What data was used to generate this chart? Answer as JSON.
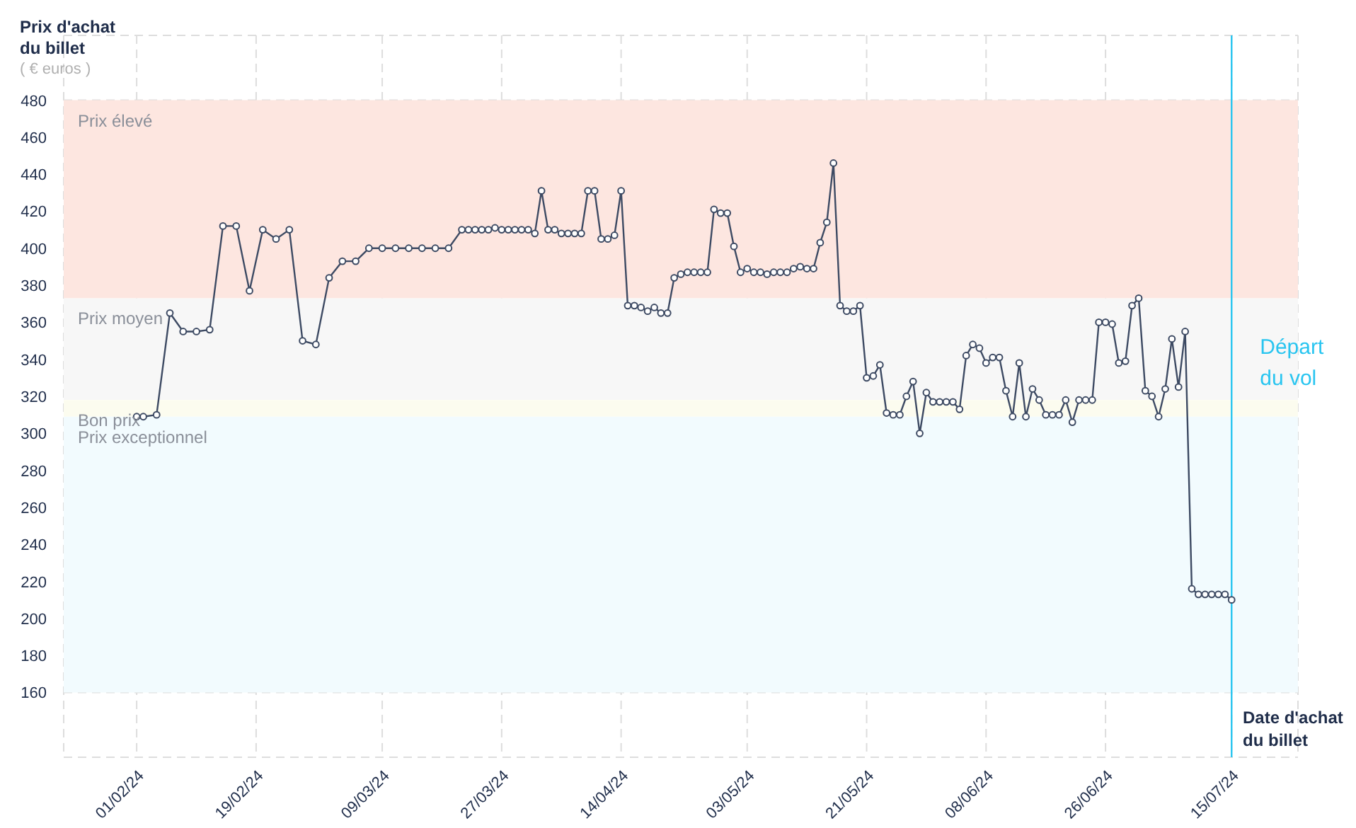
{
  "chart_data": {
    "type": "line",
    "ylabel": "Prix d'achat du billet",
    "xlabel": "Date d'achat du billet",
    "annotations": [
      "( € euros )"
    ],
    "x": [
      "2024-02-01",
      "2024-02-02",
      "2024-02-04",
      "2024-02-06",
      "2024-02-08",
      "2024-02-10",
      "2024-02-12",
      "2024-02-14",
      "2024-02-16",
      "2024-02-18",
      "2024-02-20",
      "2024-02-22",
      "2024-02-24",
      "2024-02-26",
      "2024-02-28",
      "2024-03-01",
      "2024-03-03",
      "2024-03-05",
      "2024-03-07",
      "2024-03-09",
      "2024-03-11",
      "2024-03-13",
      "2024-03-15",
      "2024-03-17",
      "2024-03-19",
      "2024-03-21",
      "2024-03-22",
      "2024-03-23",
      "2024-03-24",
      "2024-03-25",
      "2024-03-26",
      "2024-03-27",
      "2024-03-28",
      "2024-03-29",
      "2024-03-30",
      "2024-03-31",
      "2024-04-01",
      "2024-04-02",
      "2024-04-03",
      "2024-04-04",
      "2024-04-05",
      "2024-04-06",
      "2024-04-07",
      "2024-04-08",
      "2024-04-09",
      "2024-04-10",
      "2024-04-11",
      "2024-04-12",
      "2024-04-13",
      "2024-04-14",
      "2024-04-15",
      "2024-04-16",
      "2024-04-17",
      "2024-04-18",
      "2024-04-19",
      "2024-04-20",
      "2024-04-21",
      "2024-04-22",
      "2024-04-23",
      "2024-04-24",
      "2024-04-25",
      "2024-04-26",
      "2024-04-27",
      "2024-04-28",
      "2024-04-29",
      "2024-04-30",
      "2024-05-01",
      "2024-05-02",
      "2024-05-03",
      "2024-05-04",
      "2024-05-05",
      "2024-05-06",
      "2024-05-07",
      "2024-05-08",
      "2024-05-09",
      "2024-05-10",
      "2024-05-11",
      "2024-05-12",
      "2024-05-13",
      "2024-05-14",
      "2024-05-15",
      "2024-05-16",
      "2024-05-17",
      "2024-05-18",
      "2024-05-19",
      "2024-05-20",
      "2024-05-21",
      "2024-05-22",
      "2024-05-23",
      "2024-05-24",
      "2024-05-25",
      "2024-05-26",
      "2024-05-27",
      "2024-05-28",
      "2024-05-29",
      "2024-05-30",
      "2024-05-31",
      "2024-06-01",
      "2024-06-02",
      "2024-06-03",
      "2024-06-04",
      "2024-06-05",
      "2024-06-06",
      "2024-06-07",
      "2024-06-08",
      "2024-06-09",
      "2024-06-10",
      "2024-06-11",
      "2024-06-12",
      "2024-06-13",
      "2024-06-14",
      "2024-06-15",
      "2024-06-16",
      "2024-06-17",
      "2024-06-18",
      "2024-06-19",
      "2024-06-20",
      "2024-06-21",
      "2024-06-22",
      "2024-06-23",
      "2024-06-24",
      "2024-06-25",
      "2024-06-26",
      "2024-06-27",
      "2024-06-28",
      "2024-06-29",
      "2024-06-30",
      "2024-07-01",
      "2024-07-02",
      "2024-07-03",
      "2024-07-04",
      "2024-07-05",
      "2024-07-06",
      "2024-07-07",
      "2024-07-08",
      "2024-07-09",
      "2024-07-10",
      "2024-07-11",
      "2024-07-12",
      "2024-07-13",
      "2024-07-14",
      "2024-07-15"
    ],
    "series": [
      {
        "color": "#3d4a63",
        "values": [
          309,
          309,
          310,
          365,
          355,
          355,
          356,
          412,
          412,
          377,
          410,
          405,
          410,
          350,
          348,
          384,
          393,
          393,
          400,
          400,
          400,
          400,
          400,
          400,
          400,
          410,
          410,
          410,
          410,
          410,
          411,
          410,
          410,
          410,
          410,
          410,
          408,
          431,
          410,
          410,
          408,
          408,
          408,
          408,
          431,
          431,
          405,
          405,
          407,
          431,
          369,
          369,
          368,
          366,
          368,
          365,
          365,
          384,
          386,
          387,
          387,
          387,
          387,
          421,
          419,
          419,
          401,
          387,
          389,
          387,
          387,
          386,
          387,
          387,
          387,
          389,
          390,
          389,
          389,
          403,
          414,
          446,
          369,
          366,
          366,
          369,
          330,
          331,
          337,
          311,
          310,
          310,
          320,
          328,
          300,
          322,
          317,
          317,
          317,
          317,
          313,
          342,
          348,
          346,
          338,
          341,
          341,
          323,
          309,
          338,
          309,
          324,
          318,
          310,
          310,
          310,
          318,
          306,
          318,
          318,
          318,
          360,
          360,
          359,
          338,
          339,
          369,
          373,
          323,
          320,
          309,
          324,
          351,
          325,
          355,
          216,
          213,
          213,
          213,
          213,
          213,
          210
        ]
      }
    ],
    "xlim": [
      "2024-01-21",
      "2024-07-25"
    ],
    "xticks": [
      {
        "value": "2024-02-01",
        "label": "01/02/24"
      },
      {
        "value": "2024-02-19",
        "label": "19/02/24"
      },
      {
        "value": "2024-03-09",
        "label": "09/03/24"
      },
      {
        "value": "2024-03-27",
        "label": "27/03/24"
      },
      {
        "value": "2024-04-14",
        "label": "14/04/24"
      },
      {
        "value": "2024-05-03",
        "label": "03/05/24"
      },
      {
        "value": "2024-05-21",
        "label": "21/05/24"
      },
      {
        "value": "2024-06-08",
        "label": "08/06/24"
      },
      {
        "value": "2024-06-26",
        "label": "26/06/24"
      },
      {
        "value": "2024-07-15",
        "label": "15/07/24"
      }
    ],
    "ylim": [
      125,
      515
    ],
    "yticks": [
      160,
      180,
      200,
      220,
      240,
      260,
      280,
      300,
      320,
      340,
      360,
      380,
      400,
      420,
      440,
      460,
      480
    ],
    "grid": true,
    "marker": "circle",
    "line_style": "solid",
    "bands": [
      {
        "axis": "y",
        "from": 373,
        "to": 480,
        "label": "Prix élevé",
        "color": "#fde6e0"
      },
      {
        "axis": "y",
        "from": 318,
        "to": 373,
        "label": "Prix moyen",
        "color": "#f7f7f7"
      },
      {
        "axis": "y",
        "from": 309,
        "to": 318,
        "label": "Bon prix",
        "color": "#fcfcef"
      },
      {
        "axis": "y",
        "from": 160,
        "to": 309,
        "label": "Prix exceptionnel",
        "color": "#f2fbfe"
      }
    ],
    "ref_lines": [
      {
        "axis": "x",
        "value": "2024-07-15",
        "label": "Départ du vol",
        "color": "#29c5f0",
        "line_style": "solid"
      }
    ]
  }
}
